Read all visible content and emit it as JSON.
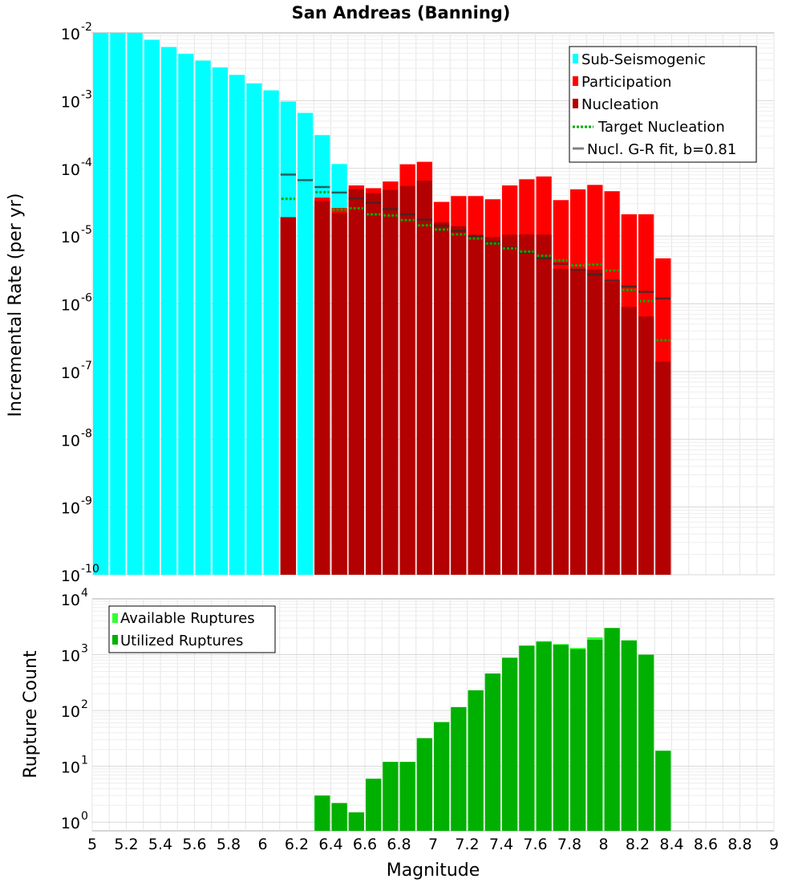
{
  "chart_data": [
    {
      "type": "bar",
      "title": "San Andreas (Banning)",
      "ylabel": "Incremental Rate (per yr)",
      "xlabel": "",
      "xlim": [
        5,
        9
      ],
      "ylim": [
        1e-10,
        0.01
      ],
      "yscale": "log",
      "grid": true,
      "legend_position": "top-right",
      "colors": {
        "sub_seismogenic": "#00ffff",
        "participation": "#ff0000",
        "nucleation": "#b30000",
        "target_nucleation": "#00aa00",
        "gr_fit": "#808080"
      },
      "legend": [
        {
          "label": "Sub-Seismogenic",
          "kind": "bar",
          "color": "#00ffff"
        },
        {
          "label": "Participation",
          "kind": "bar",
          "color": "#ff0000"
        },
        {
          "label": "Nucleation",
          "kind": "bar",
          "color": "#b30000"
        },
        {
          "label": "Target Nucleation",
          "kind": "dotted",
          "color": "#00aa00"
        },
        {
          "label": "Nucl. G-R fit, b=0.81",
          "kind": "line",
          "color": "#808080"
        }
      ],
      "sub_seismogenic": {
        "x": [
          5.05,
          5.15,
          5.25,
          5.35,
          5.45,
          5.55,
          5.65,
          5.75,
          5.85,
          5.95,
          6.05,
          6.15,
          6.25,
          6.35,
          6.45
        ],
        "values": [
          0.0135,
          0.0105,
          0.0102,
          0.0079,
          0.0062,
          0.0049,
          0.0039,
          0.0031,
          0.0024,
          0.0018,
          0.00142,
          0.00097,
          0.00066,
          0.00031,
          0.000116
        ]
      },
      "participation": {
        "x": [
          6.15,
          6.35,
          6.45,
          6.55,
          6.65,
          6.75,
          6.85,
          6.95,
          7.05,
          7.15,
          7.25,
          7.35,
          7.45,
          7.55,
          7.65,
          7.75,
          7.85,
          7.95,
          8.05,
          8.15,
          8.25,
          8.35
        ],
        "values": [
          1.9e-05,
          3.7e-05,
          2.6e-05,
          5.6e-05,
          5.1e-05,
          6.4e-05,
          0.000115,
          0.000125,
          3.2e-05,
          3.9e-05,
          3.9e-05,
          3.5e-05,
          5.6e-05,
          6.9e-05,
          7.6e-05,
          3.4e-05,
          4.9e-05,
          5.7e-05,
          4.6e-05,
          2.1e-05,
          2.1e-05,
          4.7e-06
        ]
      },
      "nucleation": {
        "x": [
          6.15,
          6.35,
          6.45,
          6.55,
          6.65,
          6.75,
          6.85,
          6.95,
          7.05,
          7.15,
          7.25,
          7.35,
          7.45,
          7.55,
          7.65,
          7.75,
          7.85,
          7.95,
          8.05,
          8.15,
          8.25,
          8.35
        ],
        "values": [
          1.9e-05,
          3.3e-05,
          2.2e-05,
          4.9e-05,
          4.3e-05,
          4.8e-05,
          5.5e-05,
          6.6e-05,
          1.6e-05,
          1.4e-05,
          1.05e-05,
          9.7e-06,
          1.05e-05,
          1.06e-05,
          1.05e-05,
          3.3e-06,
          3.2e-06,
          3.2e-06,
          2.1e-06,
          9e-07,
          6.5e-07,
          1.4e-07
        ]
      },
      "target_nucleation": {
        "x": [
          6.15,
          6.35,
          6.45,
          6.55,
          6.65,
          6.75,
          6.85,
          6.95,
          7.05,
          7.15,
          7.25,
          7.35,
          7.45,
          7.55,
          7.65,
          7.75,
          7.85,
          7.95,
          8.05,
          8.15,
          8.25,
          8.35
        ],
        "values": [
          3.55e-05,
          4.45e-05,
          2.45e-05,
          2.58e-05,
          2.1e-05,
          2.01e-05,
          1.72e-05,
          1.44e-05,
          1.25e-05,
          1.06e-05,
          9.2e-06,
          7.8e-06,
          6.6e-06,
          5.9e-06,
          5.1e-06,
          4.4e-06,
          3.7e-06,
          3.8e-06,
          3.1e-06,
          1.6e-06,
          1.1e-06,
          2.9e-07
        ]
      },
      "gr_fit": {
        "x": [
          6.15,
          6.25,
          6.35,
          6.45,
          6.55,
          6.65,
          6.75,
          6.85,
          6.95,
          7.05,
          7.15,
          7.25,
          7.35,
          7.45,
          7.55,
          7.65,
          7.75,
          7.85,
          7.95,
          8.05,
          8.15,
          8.25,
          8.35
        ],
        "values": [
          8.1e-05,
          6.7e-05,
          5.3e-05,
          4.4e-05,
          3.6e-05,
          3.1e-05,
          2.5e-05,
          2.1e-05,
          1.75e-05,
          1.42e-05,
          1.19e-05,
          9.9e-06,
          8.2e-06,
          6.8e-06,
          5.7e-06,
          4.7e-06,
          3.9e-06,
          3.2e-06,
          2.7e-06,
          2.2e-06,
          1.8e-06,
          1.5e-06,
          1.2e-06
        ]
      }
    },
    {
      "type": "bar",
      "title": "",
      "ylabel": "Rupture Count",
      "xlabel": "Magnitude",
      "xlim": [
        5,
        9
      ],
      "ylim": [
        0.7,
        10000
      ],
      "yscale": "log",
      "grid": true,
      "legend_position": "top-left",
      "x_ticks": [
        "5",
        "5.2",
        "5.4",
        "5.6",
        "5.8",
        "6",
        "6.2",
        "6.4",
        "6.6",
        "6.8",
        "7",
        "7.2",
        "7.4",
        "7.6",
        "7.8",
        "8",
        "8.2",
        "8.4",
        "8.6",
        "8.8",
        "9"
      ],
      "colors": {
        "available": "#33ff33",
        "utilized": "#00b000"
      },
      "legend": [
        {
          "label": "Available Ruptures",
          "color": "#33ff33"
        },
        {
          "label": "Utilized Ruptures",
          "color": "#00b000"
        }
      ],
      "x": [
        6.35,
        6.45,
        6.55,
        6.65,
        6.75,
        6.85,
        6.95,
        7.05,
        7.15,
        7.25,
        7.35,
        7.45,
        7.55,
        7.65,
        7.75,
        7.85,
        7.95,
        8.05,
        8.15,
        8.25,
        8.35
      ],
      "series": [
        {
          "name": "Available Ruptures",
          "values": [
            3,
            2.2,
            1.5,
            6,
            12,
            12,
            32,
            62,
            115,
            230,
            460,
            880,
            1450,
            1750,
            1550,
            1320,
            2050,
            3000,
            1800,
            1000,
            19
          ]
        },
        {
          "name": "Utilized Ruptures",
          "values": [
            3,
            2.2,
            1.5,
            6,
            12,
            12,
            32,
            62,
            115,
            230,
            460,
            880,
            1450,
            1700,
            1500,
            1250,
            1850,
            3000,
            1800,
            1000,
            19
          ]
        }
      ]
    }
  ]
}
